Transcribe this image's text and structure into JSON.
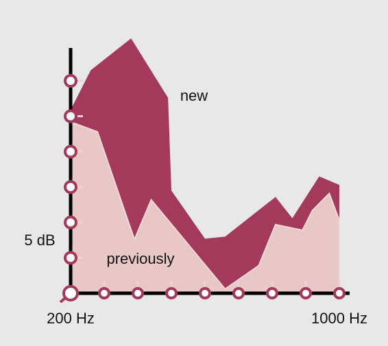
{
  "chart_data": {
    "type": "area",
    "ylabel": "5 dB",
    "xlim": [
      200,
      1000
    ],
    "ylim": [
      0,
      36
    ],
    "xticks": [
      {
        "value": 200,
        "label": "200 Hz"
      },
      300,
      400,
      500,
      600,
      700,
      800,
      900,
      {
        "value": 1000,
        "label": "1000 Hz"
      }
    ],
    "yticks": [
      0,
      5,
      10,
      15,
      20,
      25,
      30
    ],
    "series": [
      {
        "name": "new",
        "color": "#a3395b",
        "x": [
          200,
          260,
          380,
          490,
          500,
          600,
          660,
          810,
          860,
          940,
          1000
        ],
        "values": [
          25.9,
          31.5,
          36,
          27.6,
          14.5,
          7.7,
          8.0,
          13.6,
          10.6,
          16.5,
          15.3
        ]
      },
      {
        "name": "previously",
        "color": "#e8c8c6",
        "x": [
          200,
          280,
          390,
          440,
          660,
          760,
          810,
          890,
          920,
          970,
          1000
        ],
        "values": [
          24.2,
          22.8,
          7.6,
          13.2,
          0.6,
          3.9,
          9.7,
          8.9,
          11.7,
          14.1,
          10.3
        ]
      }
    ]
  }
}
